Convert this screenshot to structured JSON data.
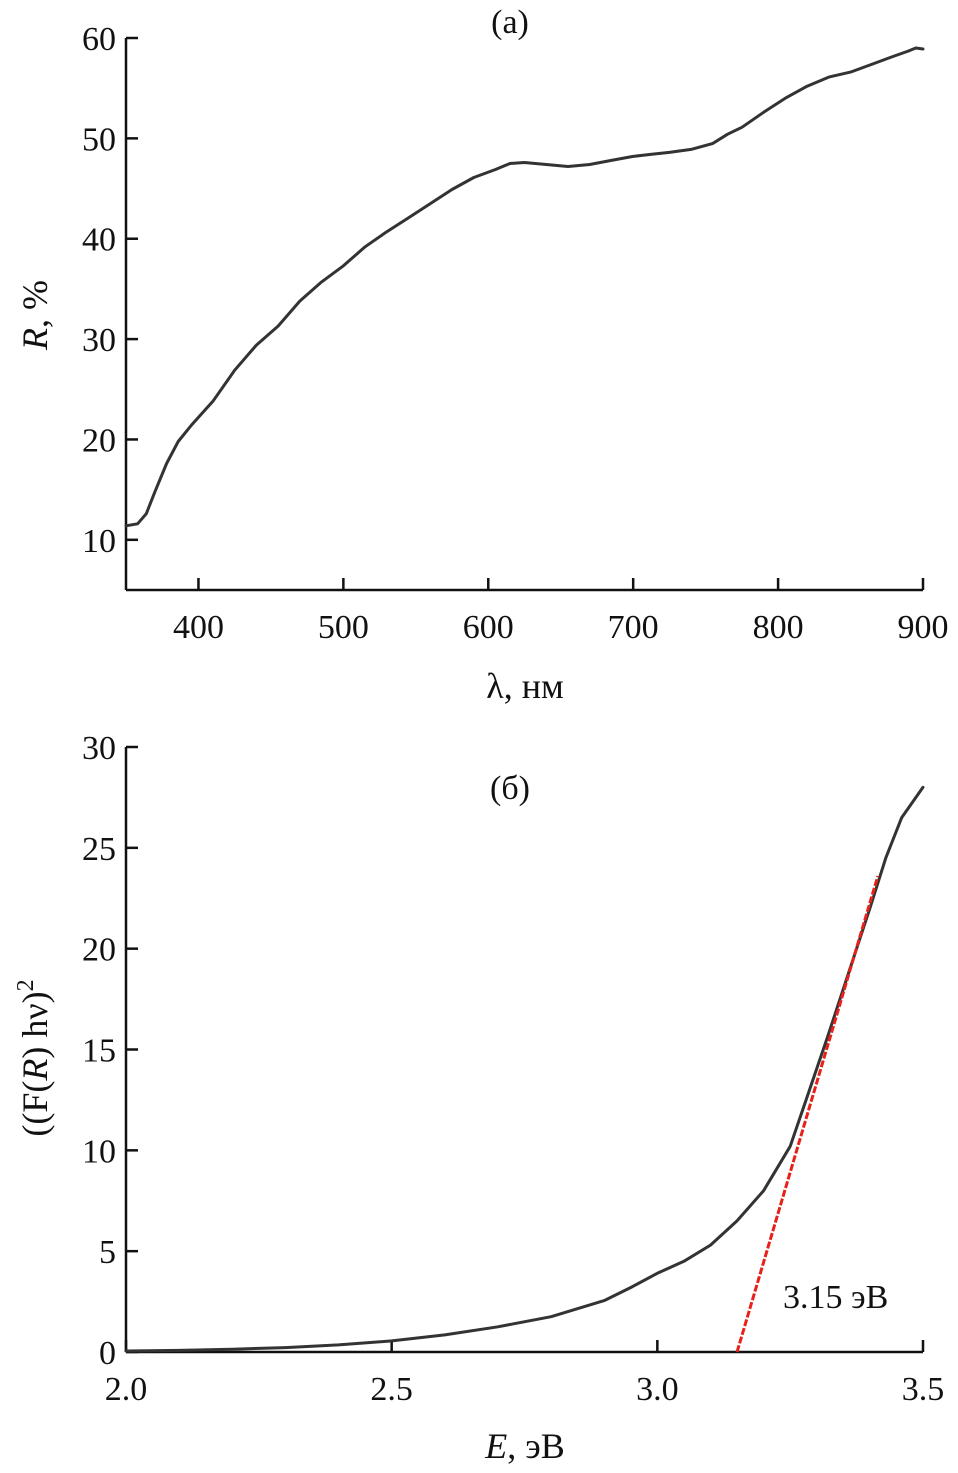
{
  "chart_data": [
    {
      "type": "line",
      "panel_label": "(a)",
      "ylabel": {
        "var": "R",
        "rest": ", %"
      },
      "xlabel": {
        "var": "λ",
        "rest": ", нм"
      },
      "xlim": [
        350,
        900
      ],
      "ylim": [
        5,
        60
      ],
      "xticks": [
        "400",
        "500",
        "600",
        "700",
        "800",
        "900"
      ],
      "yticks": [
        "10",
        "20",
        "30",
        "40",
        "50",
        "60"
      ],
      "grid": false,
      "colors": {
        "line": "#333333"
      },
      "series": [
        {
          "x": [
            350,
            358,
            364,
            370,
            378,
            386,
            395,
            410,
            425,
            440,
            455,
            470,
            485,
            500,
            515,
            530,
            545,
            560,
            575,
            590,
            605,
            615,
            625,
            640,
            655,
            670,
            685,
            700,
            712,
            725,
            740,
            755,
            765,
            775,
            790,
            805,
            820,
            835,
            850,
            865,
            880,
            890,
            895,
            900
          ],
          "y": [
            11.4,
            11.6,
            12.6,
            14.8,
            17.6,
            19.8,
            21.4,
            23.8,
            26.9,
            29.4,
            31.3,
            33.8,
            35.7,
            37.3,
            39.2,
            40.7,
            42.1,
            43.5,
            44.9,
            46.1,
            46.9,
            47.5,
            47.6,
            47.4,
            47.2,
            47.4,
            47.8,
            48.2,
            48.4,
            48.6,
            48.9,
            49.5,
            50.4,
            51.1,
            52.6,
            54.0,
            55.2,
            56.1,
            56.6,
            57.4,
            58.2,
            58.7,
            59.0,
            58.9
          ]
        }
      ]
    },
    {
      "type": "line",
      "panel_label": "(б)",
      "ylabel": {
        "pre": "((F(",
        "var": "R",
        "post": ") hν)",
        "sup": "2"
      },
      "xlabel": {
        "var": "E",
        "rest": ", эВ"
      },
      "xlim": [
        2.0,
        3.5
      ],
      "ylim": [
        0,
        30
      ],
      "xticks": [
        "2.0",
        "2.5",
        "3.0",
        "3.5"
      ],
      "yticks": [
        "0",
        "5",
        "10",
        "15",
        "20",
        "25",
        "30"
      ],
      "grid": false,
      "colors": {
        "line": "#333333",
        "fit": "#e8201a"
      },
      "series": [
        {
          "x": [
            2.0,
            2.1,
            2.2,
            2.3,
            2.4,
            2.5,
            2.6,
            2.7,
            2.8,
            2.9,
            2.95,
            3.0,
            3.05,
            3.1,
            3.15,
            3.2,
            3.25,
            3.28,
            3.32,
            3.36,
            3.4,
            3.43,
            3.46,
            3.5
          ],
          "y": [
            0.05,
            0.08,
            0.14,
            0.22,
            0.35,
            0.55,
            0.85,
            1.25,
            1.75,
            2.55,
            3.2,
            3.9,
            4.5,
            5.3,
            6.5,
            8.0,
            10.2,
            12.5,
            15.6,
            18.8,
            22.0,
            24.5,
            26.5,
            28.0
          ]
        }
      ],
      "fit_line": {
        "x": [
          3.15,
          3.415
        ],
        "y": [
          0.0,
          23.6
        ]
      },
      "annotation": "3.15 эВ"
    }
  ]
}
